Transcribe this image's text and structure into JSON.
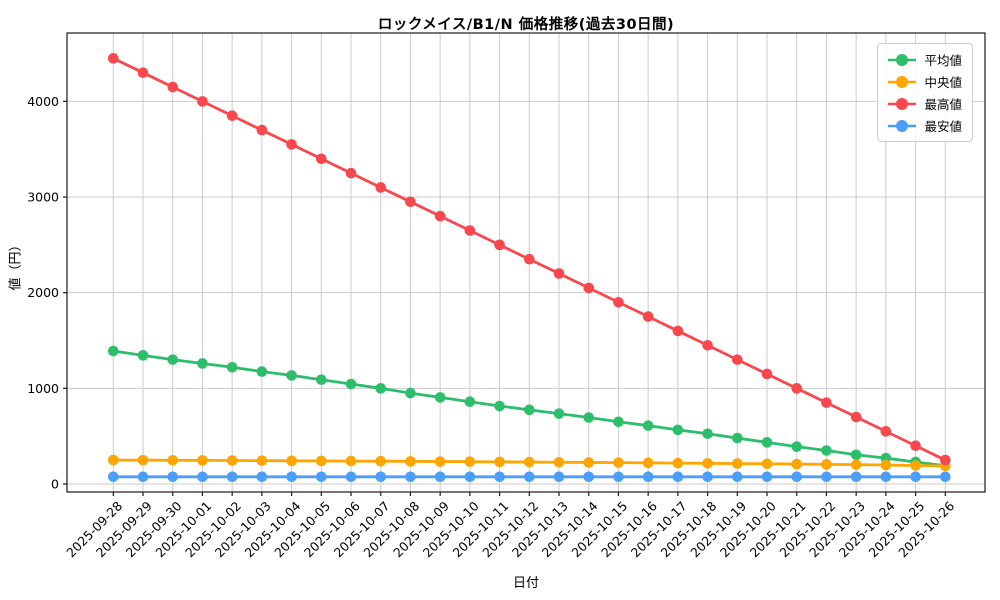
{
  "figure": {
    "title": "ロックメイス/B1/N 価格推移(過去30日間)",
    "xlabel": "日付",
    "ylabel": "値（円）"
  },
  "chart_data": {
    "type": "line",
    "title": "ロックメイス/B1/N 価格推移(過去30日間)",
    "xlabel": "日付",
    "ylabel": "値（円）",
    "grid": true,
    "legend_position": "upper right",
    "yticks": [
      0,
      1000,
      2000,
      3000,
      4000
    ],
    "ylim": [
      -84,
      4715
    ],
    "x": [
      "2025-09-28",
      "2025-09-29",
      "2025-09-30",
      "2025-10-01",
      "2025-10-02",
      "2025-10-03",
      "2025-10-04",
      "2025-10-05",
      "2025-10-06",
      "2025-10-07",
      "2025-10-08",
      "2025-10-09",
      "2025-10-10",
      "2025-10-11",
      "2025-10-12",
      "2025-10-13",
      "2025-10-14",
      "2025-10-15",
      "2025-10-16",
      "2025-10-17",
      "2025-10-18",
      "2025-10-19",
      "2025-10-20",
      "2025-10-21",
      "2025-10-22",
      "2025-10-23",
      "2025-10-24",
      "2025-10-25",
      "2025-10-26"
    ],
    "series": [
      {
        "name": "平均値",
        "key": "average",
        "color": "#2dbe6c",
        "values": [
          1390,
          1345,
          1300,
          1260,
          1220,
          1175,
          1135,
          1090,
          1045,
          1000,
          950,
          905,
          860,
          815,
          775,
          735,
          695,
          650,
          610,
          565,
          525,
          480,
          435,
          390,
          350,
          305,
          270,
          230,
          190
        ]
      },
      {
        "name": "中央値",
        "key": "median",
        "color": "#ffa502",
        "values": [
          250,
          249,
          248,
          247,
          245,
          244,
          242,
          241,
          239,
          238,
          236,
          234,
          233,
          231,
          229,
          227,
          225,
          223,
          221,
          218,
          216,
          213,
          211,
          208,
          205,
          202,
          198,
          193,
          188
        ]
      },
      {
        "name": "最高値",
        "key": "max",
        "color": "#f8484e",
        "values": [
          4450,
          4300,
          4150,
          4000,
          3850,
          3700,
          3550,
          3400,
          3250,
          3100,
          2950,
          2800,
          2650,
          2500,
          2350,
          2200,
          2050,
          1900,
          1750,
          1600,
          1450,
          1300,
          1150,
          1000,
          850,
          700,
          550,
          400,
          250
        ]
      },
      {
        "name": "最安値",
        "key": "min",
        "color": "#4b9efa",
        "values": [
          75,
          75,
          75,
          75,
          75,
          75,
          75,
          75,
          75,
          75,
          75,
          75,
          75,
          75,
          75,
          75,
          75,
          75,
          75,
          75,
          75,
          75,
          75,
          75,
          75,
          75,
          75,
          75,
          75
        ]
      }
    ]
  }
}
